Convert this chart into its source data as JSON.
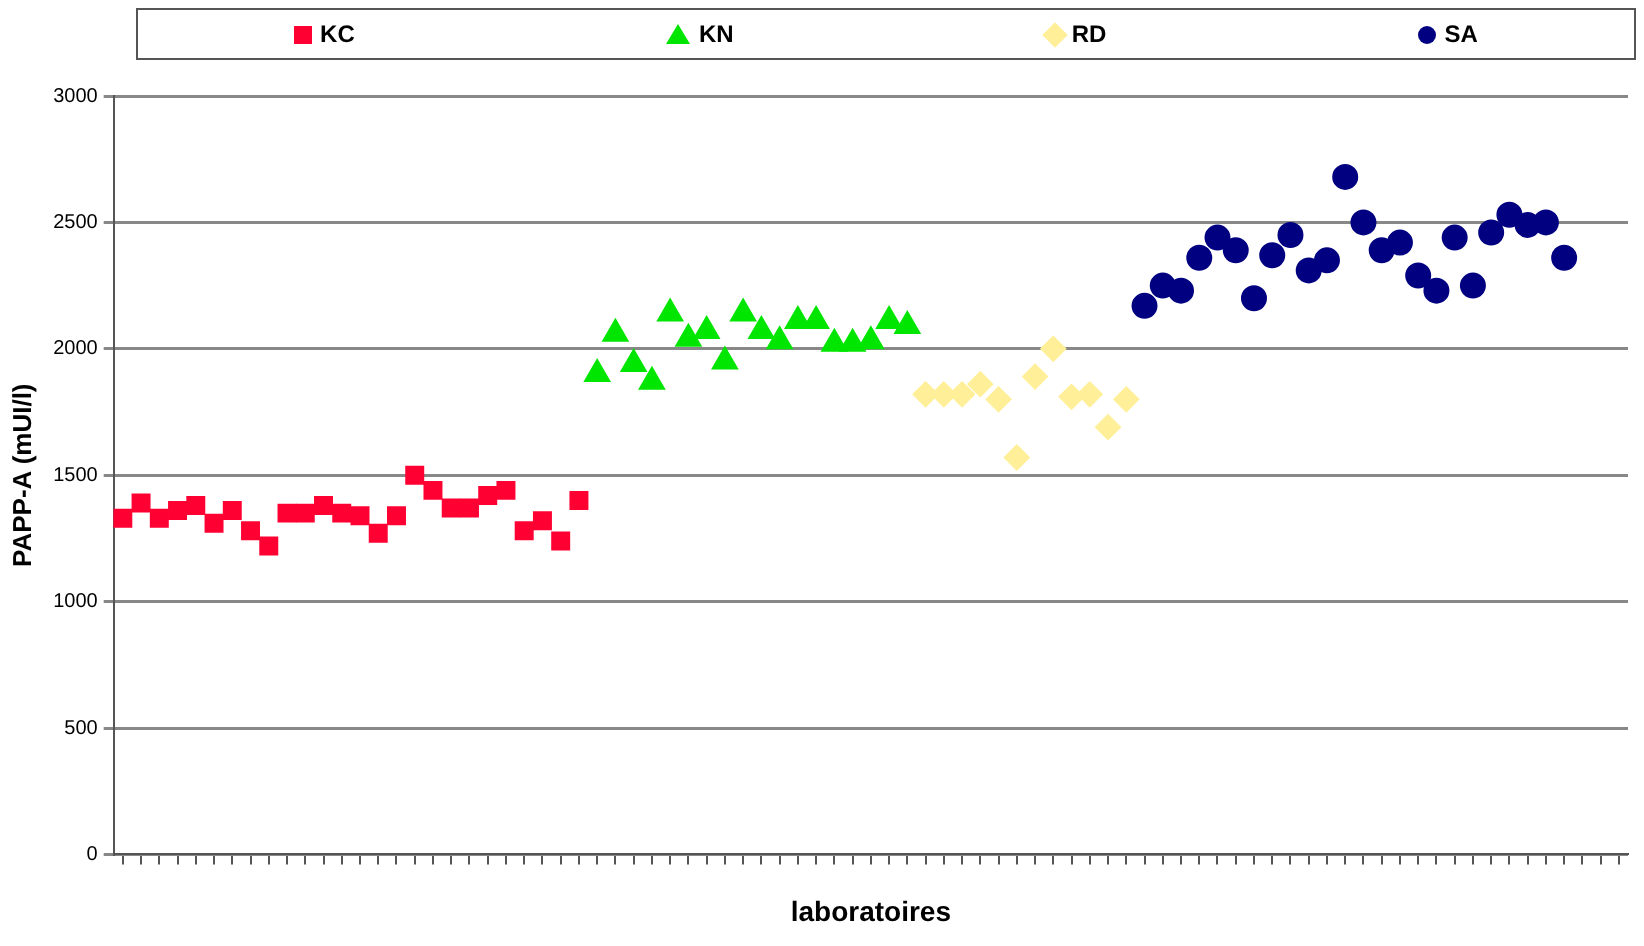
{
  "chart_data": {
    "type": "scatter",
    "xlabel": "laboratoires",
    "ylabel": "PAPP-A (mUI/l)",
    "categories": [
      null,
      null,
      null,
      null,
      null,
      null,
      null,
      null,
      null,
      null,
      null,
      null,
      null,
      null,
      null,
      null,
      null,
      null,
      null,
      null,
      null,
      null,
      null,
      null,
      null,
      null,
      null,
      null,
      null,
      null,
      null,
      null,
      null,
      null,
      null,
      null,
      null,
      null,
      null,
      null,
      null,
      null,
      null,
      null,
      null,
      null,
      null,
      null,
      null,
      null,
      null,
      null,
      null,
      null,
      null,
      null,
      null,
      null,
      null,
      null,
      null,
      null,
      null,
      null,
      null,
      null,
      null,
      null,
      null,
      null,
      null,
      null,
      null,
      null,
      null,
      null,
      null,
      null,
      null,
      null,
      null,
      null,
      null
    ],
    "series": [
      {
        "name": "KC",
        "color": "#ff0033",
        "marker": "square",
        "values": [
          1330,
          1390,
          1330,
          1360,
          1380,
          1310,
          1360,
          1280,
          1220,
          1350,
          1350,
          1380,
          1350,
          1340,
          1270,
          1340,
          1500,
          1440,
          1370,
          1370,
          1420,
          1440,
          1280,
          1320,
          1240,
          1400,
          null,
          null,
          null,
          null,
          null,
          null,
          null,
          null,
          null,
          null,
          null,
          null,
          null,
          null,
          null,
          null,
          null,
          null,
          null,
          null,
          null,
          null,
          null,
          null,
          null,
          null,
          null,
          null,
          null,
          null,
          null,
          null,
          null,
          null,
          null,
          null,
          null,
          null,
          null,
          null,
          null,
          null,
          null,
          null,
          null,
          null,
          null,
          null,
          null,
          null,
          null,
          null,
          null,
          null,
          null,
          null,
          null
        ]
      },
      {
        "name": "KN",
        "color": "#00e600",
        "marker": "triangle",
        "values": [
          null,
          null,
          null,
          null,
          null,
          null,
          null,
          null,
          null,
          null,
          null,
          null,
          null,
          null,
          null,
          null,
          null,
          null,
          null,
          null,
          null,
          null,
          null,
          null,
          null,
          null,
          1900,
          2060,
          1940,
          1870,
          2140,
          2040,
          2070,
          1950,
          2140,
          2070,
          2030,
          2110,
          2110,
          2020,
          2020,
          2030,
          2110,
          2090,
          null,
          null,
          null,
          null,
          null,
          null,
          null,
          null,
          null,
          null,
          null,
          null,
          null,
          null,
          null,
          null,
          null,
          null,
          null,
          null,
          null,
          null,
          null,
          null,
          null,
          null,
          null,
          null,
          null,
          null,
          null,
          null,
          null,
          null,
          null,
          null,
          null,
          null,
          null
        ]
      },
      {
        "name": "RD",
        "color": "#ffef99",
        "marker": "diamond",
        "values": [
          null,
          null,
          null,
          null,
          null,
          null,
          null,
          null,
          null,
          null,
          null,
          null,
          null,
          null,
          null,
          null,
          null,
          null,
          null,
          null,
          null,
          null,
          null,
          null,
          null,
          null,
          null,
          null,
          null,
          null,
          null,
          null,
          null,
          null,
          null,
          null,
          null,
          null,
          null,
          null,
          null,
          null,
          null,
          null,
          1820,
          1820,
          1820,
          1860,
          1800,
          1570,
          1890,
          2000,
          1810,
          1820,
          1690,
          1800,
          null,
          null,
          null,
          null,
          null,
          null,
          null,
          null,
          null,
          null,
          null,
          null,
          null,
          null,
          null,
          null,
          null,
          null,
          null,
          null,
          null,
          null,
          null,
          null,
          null,
          null,
          null
        ]
      },
      {
        "name": "SA",
        "color": "#000080",
        "marker": "circle",
        "values": [
          null,
          null,
          null,
          null,
          null,
          null,
          null,
          null,
          null,
          null,
          null,
          null,
          null,
          null,
          null,
          null,
          null,
          null,
          null,
          null,
          null,
          null,
          null,
          null,
          null,
          null,
          null,
          null,
          null,
          null,
          null,
          null,
          null,
          null,
          null,
          null,
          null,
          null,
          null,
          null,
          null,
          null,
          null,
          null,
          null,
          null,
          null,
          null,
          null,
          null,
          null,
          null,
          null,
          null,
          null,
          null,
          2170,
          2250,
          2230,
          2360,
          2440,
          2390,
          2200,
          2370,
          2450,
          2310,
          2350,
          2680,
          2500,
          2390,
          2420,
          2290,
          2230,
          2440,
          2250,
          2460,
          2530,
          2490,
          2500,
          2360,
          null,
          null,
          null
        ]
      }
    ],
    "ylim": [
      0,
      3000
    ],
    "yticks": [
      0,
      500,
      1000,
      1500,
      2000,
      2500,
      3000
    ],
    "grid": "y",
    "legend": "top",
    "tick_labels": "y"
  }
}
